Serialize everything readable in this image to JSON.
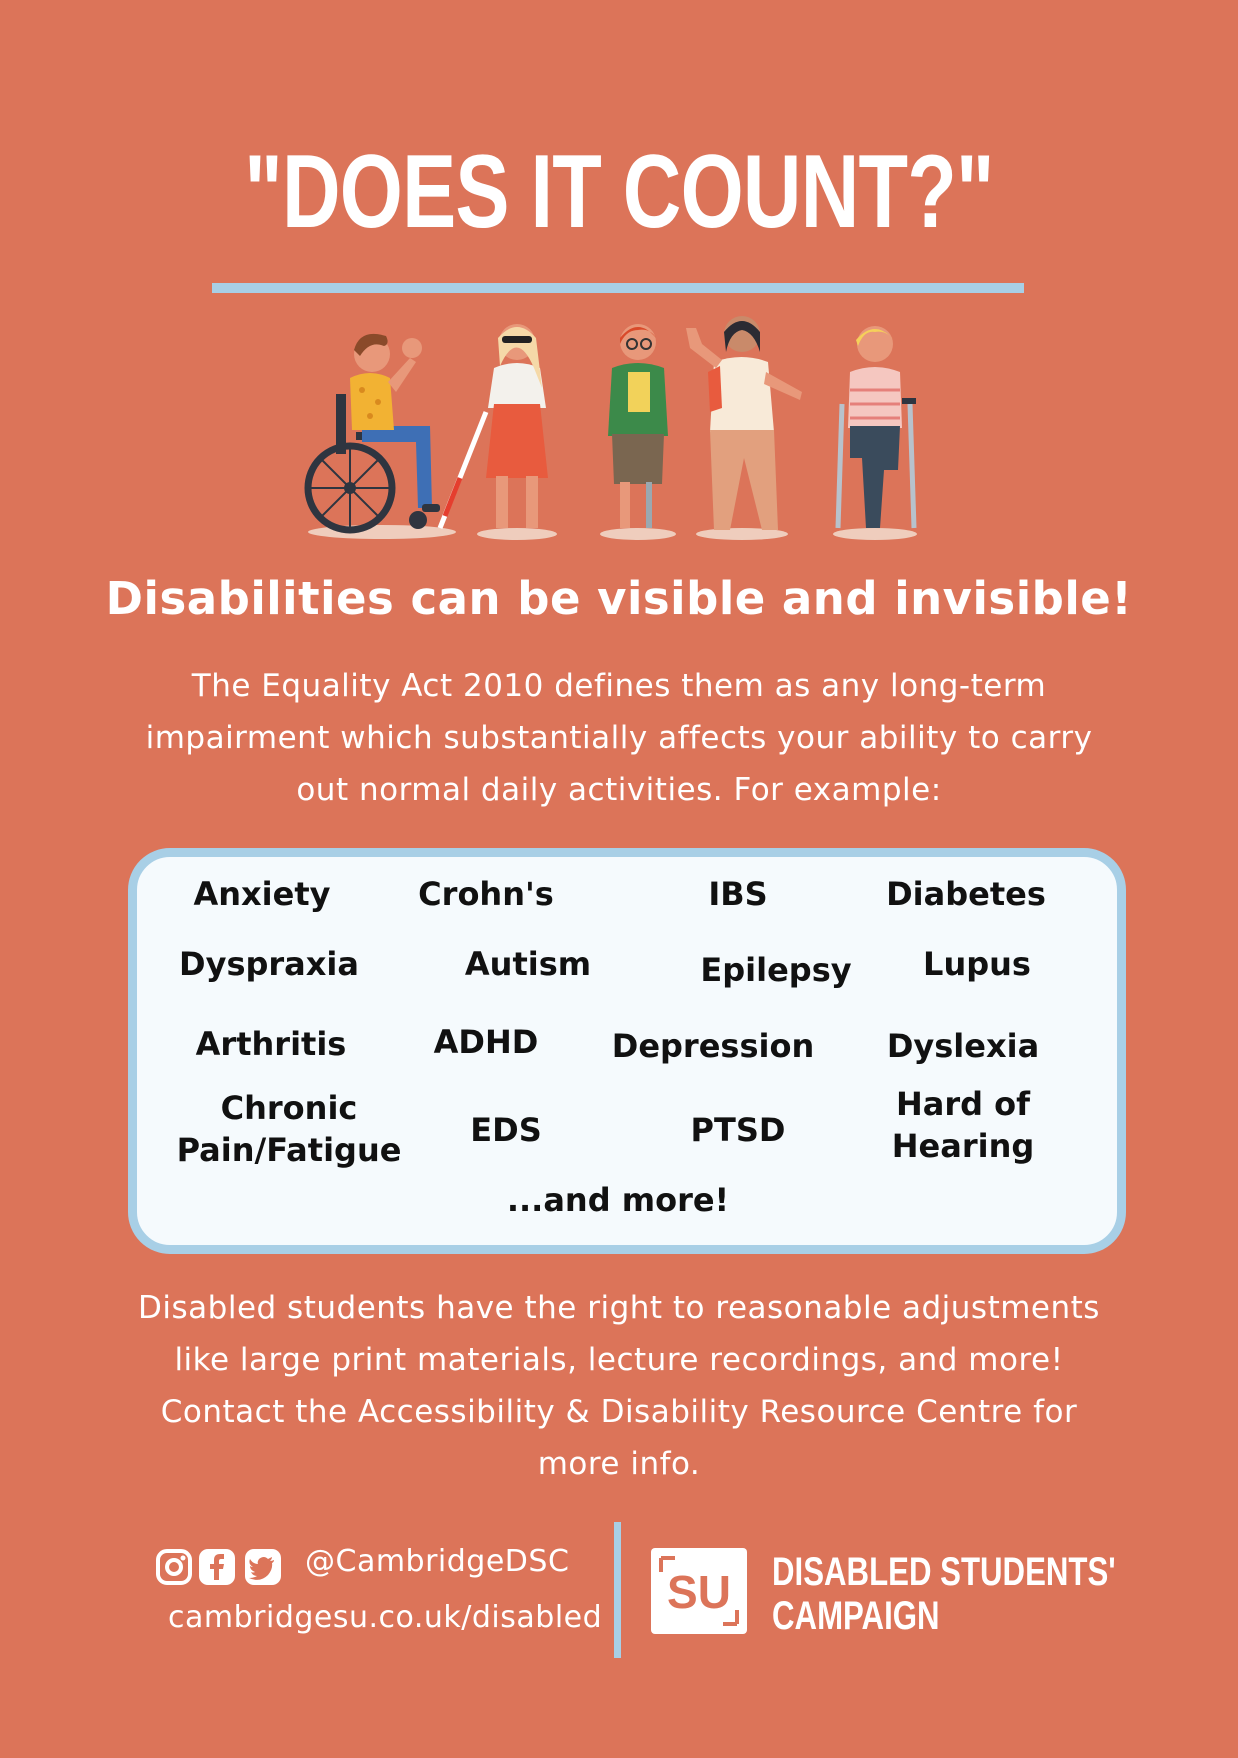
{
  "title": "\"DOES IT COUNT?\"",
  "subtitle": "Disabilities can be visible and invisible!",
  "intro": {
    "lines": [
      "The Equality Act 2010 defines them as any long-term",
      "impairment which substantially affects your ability to carry",
      "out normal daily activities.  For example:"
    ]
  },
  "conditions": {
    "row1": [
      "Anxiety",
      "Crohn's",
      "IBS",
      "Diabetes"
    ],
    "row2": [
      "Dyspraxia",
      "Autism",
      "Epilepsy",
      "Lupus"
    ],
    "row3": [
      "Arthritis",
      "ADHD",
      "Depression",
      "Dyslexia"
    ],
    "row4": [
      "Chronic",
      "Pain/Fatigue",
      "EDS",
      "PTSD",
      "Hard of",
      "Hearing"
    ],
    "more": "...and more!"
  },
  "rights": {
    "lines": [
      "Disabled students have the right to reasonable adjustments",
      "like large print materials, lecture recordings, and more!",
      "Contact the Accessibility & Disability Resource Centre for",
      "more info."
    ]
  },
  "footer": {
    "social_icons": [
      "instagram-icon",
      "facebook-icon",
      "twitter-icon"
    ],
    "handle": "@CambridgeDSC",
    "website": "cambridgesu.co.uk/disabled",
    "logo_text": "SU",
    "campaign_line1": "DISABLED STUDENTS'",
    "campaign_line2": "CAMPAIGN"
  },
  "colors": {
    "background": "#DC7459",
    "accent": "#A8CFE6",
    "box": "#F5FAFD"
  }
}
